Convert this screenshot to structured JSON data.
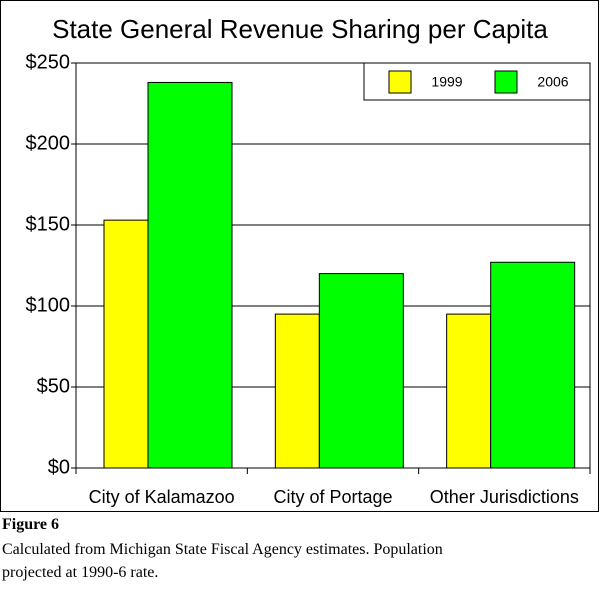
{
  "chart_data": {
    "type": "bar",
    "title": "State General Revenue Sharing per Capita",
    "categories": [
      "City of Kalamazoo",
      "City of Portage",
      "Other Jurisdictions"
    ],
    "series": [
      {
        "name": "1999",
        "color": "#ffff00",
        "values": [
          153,
          95,
          95
        ]
      },
      {
        "name": "2006",
        "color": "#00ff00",
        "values": [
          238,
          120,
          127
        ]
      }
    ],
    "ylim": [
      0,
      250
    ],
    "yticks": [
      {
        "value": 0,
        "label": "$0"
      },
      {
        "value": 50,
        "label": "$50"
      },
      {
        "value": 100,
        "label": "$100"
      },
      {
        "value": 150,
        "label": "$150"
      },
      {
        "value": 200,
        "label": "$200"
      },
      {
        "value": 250,
        "label": "$250"
      }
    ],
    "grid": true,
    "legend": "top-right"
  },
  "caption": {
    "label": "Figure 6",
    "lines": [
      "Calculated from Michigan State Fiscal Agency estimates. Population",
      "projected at 1990-6 rate."
    ]
  }
}
